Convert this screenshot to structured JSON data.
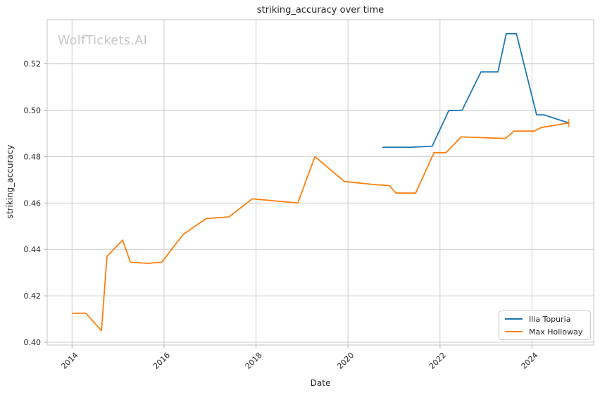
{
  "figure": {
    "watermark": "WolfTickets.AI"
  },
  "chart_data": {
    "type": "line",
    "title": "striking_accuracy over time",
    "xlabel": "Date",
    "ylabel": "striking_accuracy",
    "xlim": [
      2013.46,
      2025.34
    ],
    "ylim": [
      0.3988,
      0.539
    ],
    "x_ticks": [
      2014,
      2016,
      2018,
      2020,
      2022,
      2024
    ],
    "y_ticks": [
      0.4,
      0.42,
      0.44,
      0.46,
      0.48,
      0.5,
      0.52
    ],
    "grid": true,
    "legend_position": "lower right",
    "colors": {
      "grid": "#cccccc",
      "spine": "#c4c4c4",
      "tick": "#aaaaaa",
      "text": "#262626"
    },
    "series": [
      {
        "name": "Ilia Topuria",
        "color": "#1f77b4",
        "points": [
          [
            2020.75,
            0.484
          ],
          [
            2021.35,
            0.484
          ],
          [
            2021.83,
            0.4845
          ],
          [
            2022.19,
            0.4998
          ],
          [
            2022.48,
            0.5
          ],
          [
            2022.89,
            0.5165
          ],
          [
            2023.26,
            0.5165
          ],
          [
            2023.44,
            0.533
          ],
          [
            2023.66,
            0.533
          ],
          [
            2024.1,
            0.498
          ],
          [
            2024.26,
            0.498
          ],
          [
            2024.8,
            0.4945
          ]
        ]
      },
      {
        "name": "Max Holloway",
        "color": "#ff7f0e",
        "end_marker": "|",
        "points": [
          [
            2014.0,
            0.4125
          ],
          [
            2014.3,
            0.4125
          ],
          [
            2014.64,
            0.405
          ],
          [
            2014.76,
            0.437
          ],
          [
            2015.1,
            0.444
          ],
          [
            2015.27,
            0.4345
          ],
          [
            2015.65,
            0.434
          ],
          [
            2015.95,
            0.4345
          ],
          [
            2016.42,
            0.4465
          ],
          [
            2016.92,
            0.4533
          ],
          [
            2017.41,
            0.454
          ],
          [
            2017.92,
            0.4618
          ],
          [
            2018.91,
            0.46
          ],
          [
            2019.28,
            0.48
          ],
          [
            2019.92,
            0.4693
          ],
          [
            2020.55,
            0.468
          ],
          [
            2020.9,
            0.4675
          ],
          [
            2021.04,
            0.4643
          ],
          [
            2021.47,
            0.4643
          ],
          [
            2021.87,
            0.4817
          ],
          [
            2022.13,
            0.4817
          ],
          [
            2022.46,
            0.4885
          ],
          [
            2023.42,
            0.4878
          ],
          [
            2023.61,
            0.491
          ],
          [
            2024.05,
            0.491
          ],
          [
            2024.2,
            0.4925
          ],
          [
            2024.8,
            0.4945
          ]
        ]
      }
    ]
  }
}
